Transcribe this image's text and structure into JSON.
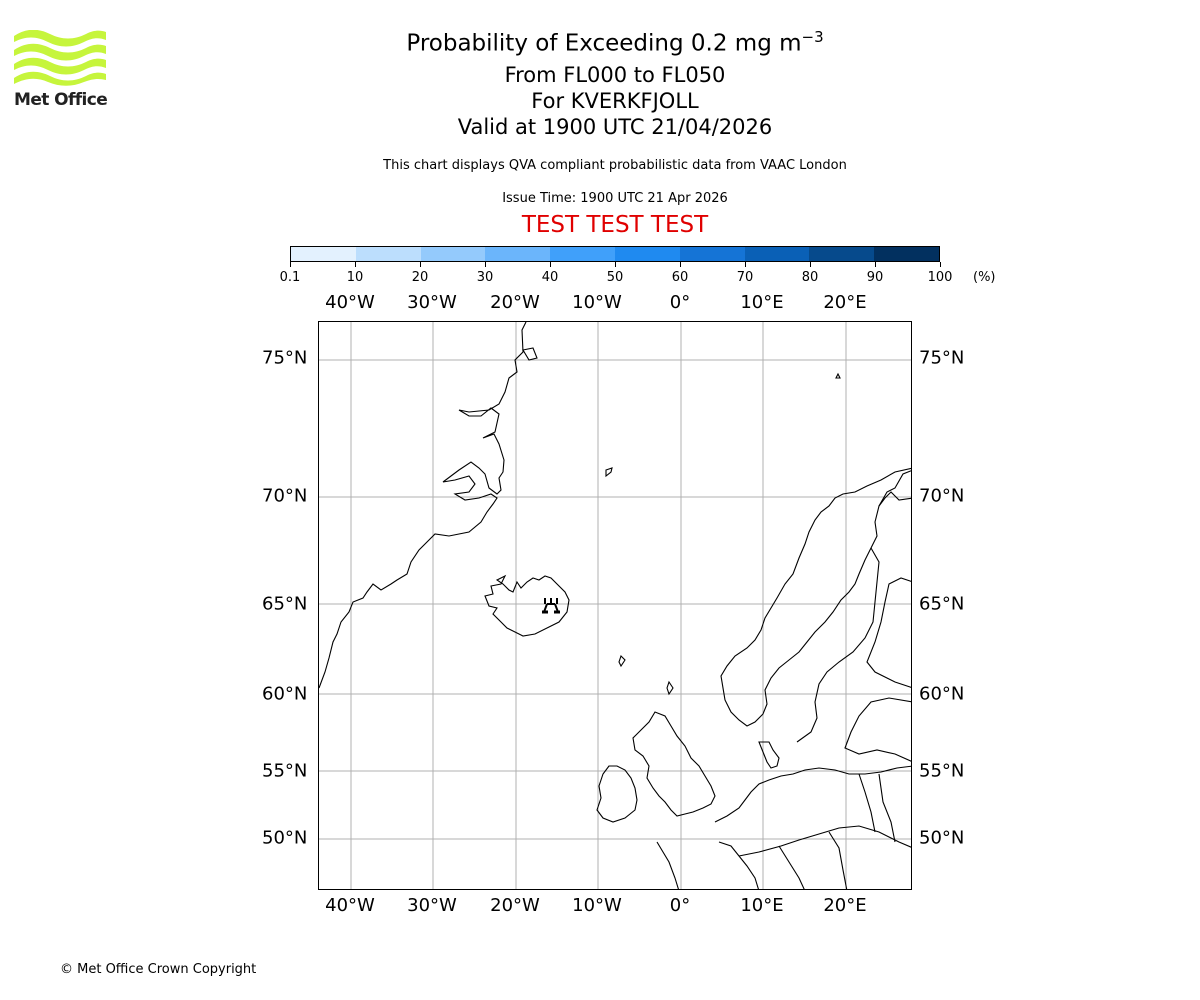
{
  "logo": {
    "text": "Met Office",
    "icon": "met-office-waves-logo",
    "color": "#c6f53c"
  },
  "header": {
    "title": "Probability of Exceeding 0.2 mg m",
    "title_superscript": "−3",
    "levels": "From FL000 to FL050",
    "volcano": "For KVERKFJOLL",
    "valid_time": "Valid at 1900 UTC 21/04/2026",
    "description": "This chart displays QVA compliant probabilistic data from VAAC London",
    "issue_time": "Issue Time: 1900 UTC 21 Apr 2026",
    "test_banner": "TEST TEST TEST",
    "test_banner_color": "#e00000"
  },
  "colorbar": {
    "ticks": [
      "0.1",
      "10",
      "20",
      "30",
      "40",
      "50",
      "60",
      "70",
      "80",
      "90",
      "100"
    ],
    "unit": "(%)",
    "colors": [
      "#e3f1fe",
      "#bcdefd",
      "#94cafc",
      "#6bb5fb",
      "#40a0fa",
      "#1f8af0",
      "#1574d6",
      "#0a60b6",
      "#064a8c",
      "#02305f"
    ]
  },
  "map": {
    "lon_labels": [
      "40°W",
      "30°W",
      "20°W",
      "10°W",
      "0°",
      "10°E",
      "20°E"
    ],
    "lat_labels": [
      "75°N",
      "70°N",
      "65°N",
      "60°N",
      "55°N",
      "50°N"
    ],
    "volcano_marker": "volcano-icon",
    "volcano_name": "KVERKFJOLL",
    "gridline_color": "#b0b0b0"
  },
  "footer": {
    "copyright": "© Met Office Crown Copyright"
  },
  "chart_data": {
    "type": "heatmap",
    "title": "Probability of Exceeding 0.2 mg m⁻³ — From FL000 to FL050 — For KVERKFJOLL — Valid at 1900 UTC 21/04/2026",
    "subtitle": "This chart displays QVA compliant probabilistic data from VAAC London; Issue Time: 1900 UTC 21 Apr 2026",
    "annotation": "TEST TEST TEST",
    "legend": {
      "type": "discrete colorbar",
      "position": "top",
      "bins": [
        "0.1-10",
        "10-20",
        "20-30",
        "30-40",
        "40-50",
        "50-60",
        "60-70",
        "70-80",
        "80-90",
        "90-100"
      ],
      "unit": "%"
    },
    "x_ticks": [
      "40°W",
      "30°W",
      "20°W",
      "10°W",
      "0°",
      "10°E",
      "20°E"
    ],
    "y_ticks": [
      "50°N",
      "55°N",
      "60°N",
      "65°N",
      "70°N",
      "75°N"
    ],
    "xlim": [
      -44,
      28
    ],
    "ylim": [
      47,
      77
    ],
    "grid": true,
    "values": [],
    "markers": [
      {
        "name": "KVERKFJOLL",
        "lon": -16.7,
        "lat": 64.65,
        "symbol": "volcano"
      }
    ]
  }
}
